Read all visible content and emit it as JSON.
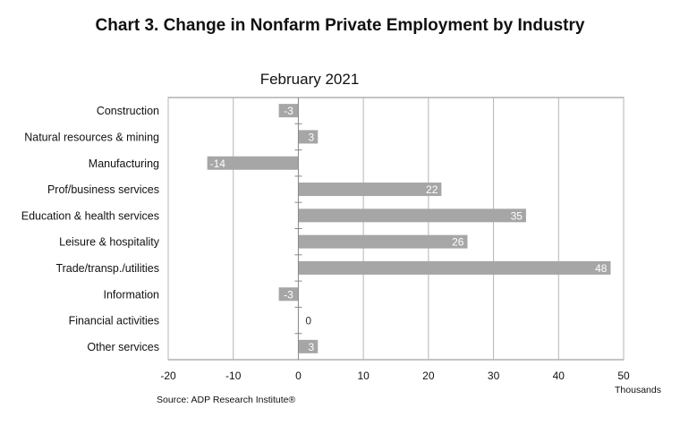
{
  "title": "Chart 3. Change in Nonfarm Private Employment by Industry",
  "chart_data": {
    "type": "bar",
    "orientation": "horizontal",
    "subtitle": "February 2021",
    "categories": [
      "Construction",
      "Natural resources & mining",
      "Manufacturing",
      "Prof/business services",
      "Education & health services",
      "Leisure & hospitality",
      "Trade/transp./utilities",
      "Information",
      "Financial activities",
      "Other services"
    ],
    "values": [
      -3,
      3,
      -14,
      22,
      35,
      26,
      48,
      -3,
      0,
      3
    ],
    "data_labels": [
      "-3",
      "3",
      "-14",
      "22",
      "35",
      "26",
      "48",
      "-3",
      "0",
      "3"
    ],
    "xlabel": "Thousands",
    "ylabel": "",
    "xlim": [
      -20,
      50
    ],
    "x_ticks": [
      -20,
      -10,
      0,
      10,
      20,
      30,
      40,
      50
    ],
    "x_tick_labels": [
      "-20",
      "-10",
      "0",
      "10",
      "20",
      "30",
      "40",
      "50"
    ],
    "grid": true,
    "legend": "none",
    "bar_color": "#a6a6a6",
    "source": "Source: ADP Research Institute®"
  }
}
